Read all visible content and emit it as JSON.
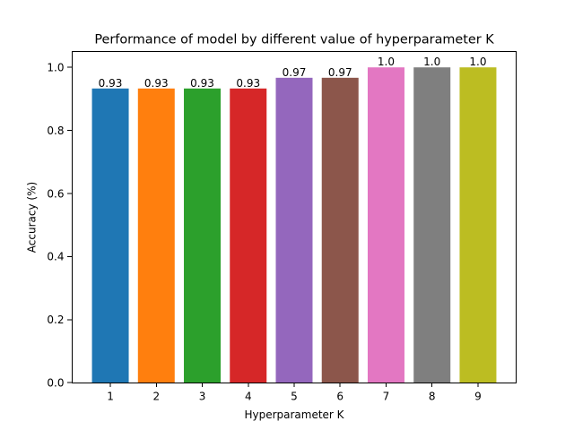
{
  "chart_data": {
    "type": "bar",
    "title": "Performance of model by different value of hyperparameter K",
    "xlabel": "Hyperparameter K",
    "ylabel": "Accuracy (%)",
    "categories": [
      "1",
      "2",
      "3",
      "4",
      "5",
      "6",
      "7",
      "8",
      "9"
    ],
    "values": [
      0.933,
      0.933,
      0.933,
      0.933,
      0.967,
      0.967,
      1.0,
      1.0,
      1.0
    ],
    "data_labels": [
      "0.93",
      "0.93",
      "0.93",
      "0.93",
      "0.97",
      "0.97",
      "1.0",
      "1.0",
      "1.0"
    ],
    "colors": [
      "#1f77b4",
      "#ff7f0e",
      "#2ca02c",
      "#d62728",
      "#9467bd",
      "#8c564b",
      "#e377c2",
      "#7f7f7f",
      "#bcbd22"
    ],
    "ylim": [
      0,
      1.05
    ],
    "yticks": [
      0.0,
      0.2,
      0.4,
      0.6,
      0.8,
      1.0
    ],
    "ytick_labels": [
      "0.0",
      "0.2",
      "0.4",
      "0.6",
      "0.8",
      "1.0"
    ],
    "grid": false,
    "legend": "none"
  }
}
